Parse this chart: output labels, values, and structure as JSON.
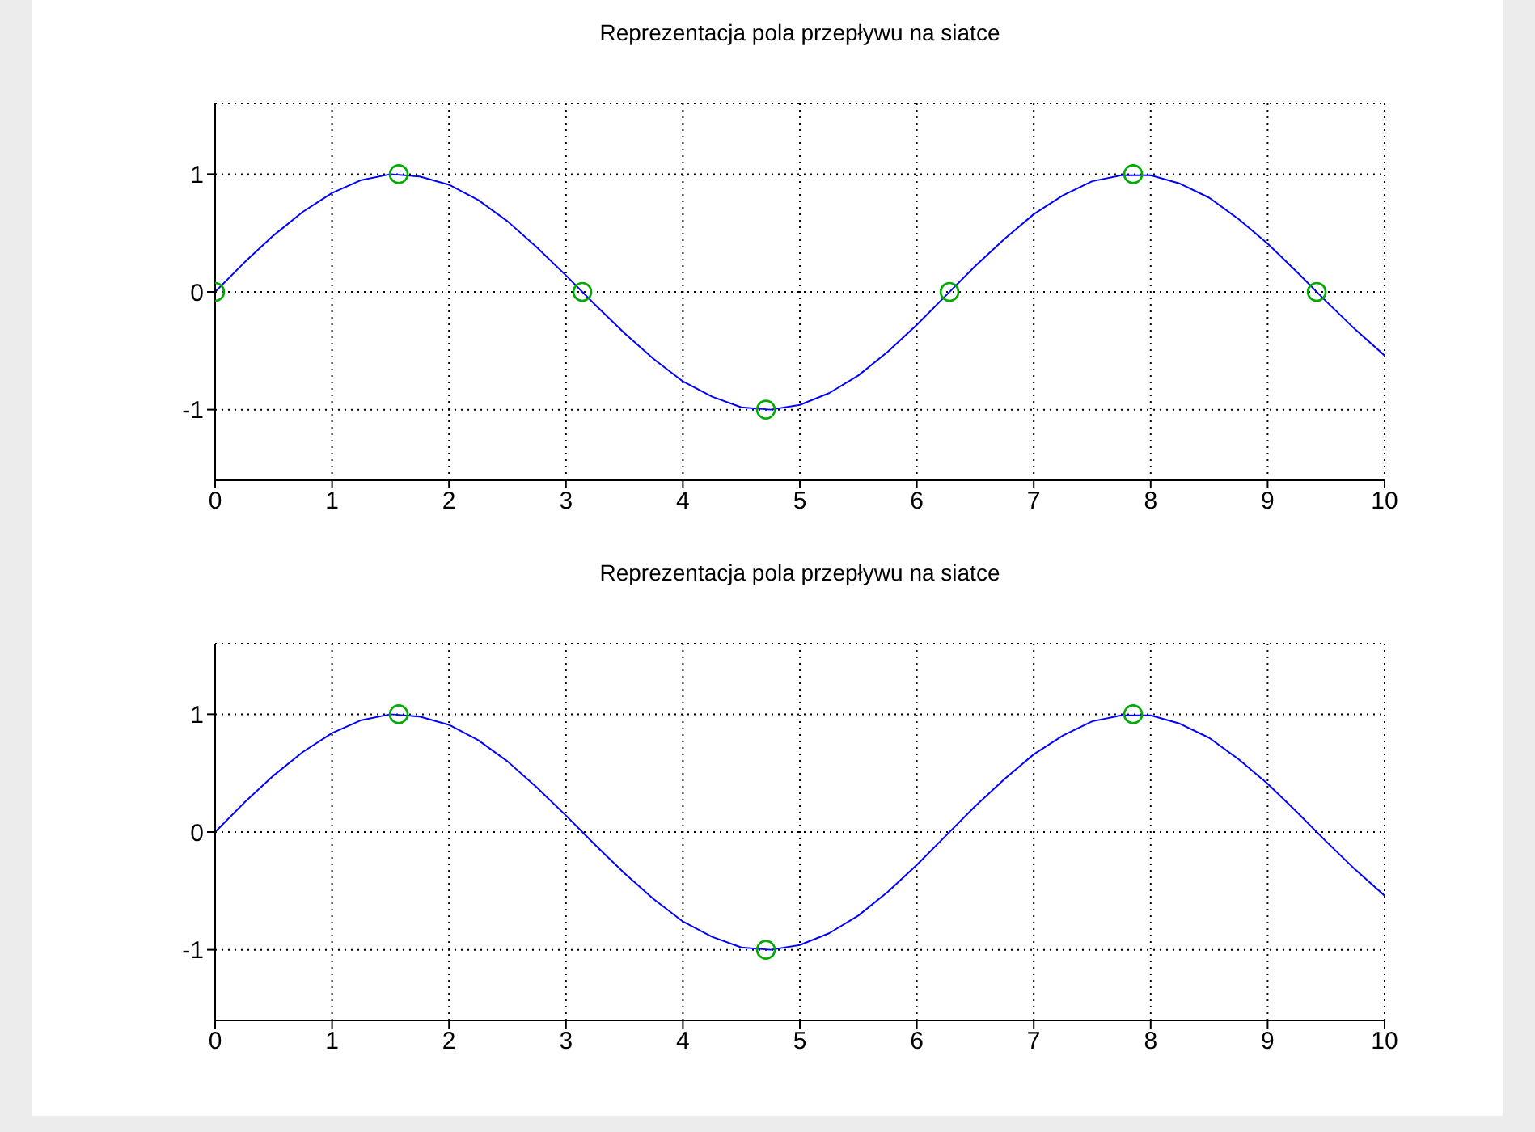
{
  "chart_data": [
    {
      "type": "line",
      "title": "Reprezentacja pola przepływu na siatce",
      "xlim": [
        0,
        10
      ],
      "xticks": [
        0,
        1,
        2,
        3,
        4,
        5,
        6,
        7,
        8,
        9,
        10
      ],
      "ylim": [
        -1.6,
        1.6
      ],
      "yticks": [
        -1,
        0,
        1
      ],
      "grid": true,
      "series": [
        {
          "color": "#0000ff",
          "line_style": "solid",
          "marker": "none",
          "x": [
            0,
            0.25,
            0.5,
            0.75,
            1,
            1.25,
            1.5,
            1.75,
            2,
            2.25,
            2.5,
            2.75,
            3,
            3.25,
            3.5,
            3.75,
            4,
            4.25,
            4.5,
            4.75,
            5,
            5.25,
            5.5,
            5.75,
            6,
            6.25,
            6.5,
            6.75,
            7,
            7.25,
            7.5,
            7.75,
            8,
            8.25,
            8.5,
            8.75,
            9,
            9.25,
            9.5,
            9.75,
            10
          ],
          "values": [
            0,
            0.25,
            0.48,
            0.68,
            0.84,
            0.95,
            1.0,
            0.98,
            0.91,
            0.78,
            0.6,
            0.38,
            0.14,
            -0.11,
            -0.35,
            -0.57,
            -0.76,
            -0.89,
            -0.98,
            -1.0,
            -0.96,
            -0.86,
            -0.71,
            -0.51,
            -0.28,
            -0.03,
            0.22,
            0.45,
            0.66,
            0.82,
            0.94,
            0.99,
            0.99,
            0.92,
            0.8,
            0.62,
            0.41,
            0.17,
            -0.08,
            -0.32,
            -0.54
          ]
        },
        {
          "type": "scatter",
          "color": "#00aa00",
          "marker": "circle",
          "x": [
            0,
            1.57,
            3.14,
            4.71,
            6.28,
            7.85,
            9.42
          ],
          "values": [
            0,
            1,
            0,
            -1,
            0,
            1,
            0
          ]
        }
      ]
    },
    {
      "type": "line",
      "title": "Reprezentacja pola przepływu na siatce",
      "xlim": [
        0,
        10
      ],
      "xticks": [
        0,
        1,
        2,
        3,
        4,
        5,
        6,
        7,
        8,
        9,
        10
      ],
      "ylim": [
        -1.6,
        1.6
      ],
      "yticks": [
        -1,
        0,
        1
      ],
      "grid": true,
      "series": [
        {
          "color": "#0000ff",
          "line_style": "solid",
          "marker": "none",
          "x": [
            0,
            0.25,
            0.5,
            0.75,
            1,
            1.25,
            1.5,
            1.75,
            2,
            2.25,
            2.5,
            2.75,
            3,
            3.25,
            3.5,
            3.75,
            4,
            4.25,
            4.5,
            4.75,
            5,
            5.25,
            5.5,
            5.75,
            6,
            6.25,
            6.5,
            6.75,
            7,
            7.25,
            7.5,
            7.75,
            8,
            8.25,
            8.5,
            8.75,
            9,
            9.25,
            9.5,
            9.75,
            10
          ],
          "values": [
            0,
            0.25,
            0.48,
            0.68,
            0.84,
            0.95,
            1.0,
            0.98,
            0.91,
            0.78,
            0.6,
            0.38,
            0.14,
            -0.11,
            -0.35,
            -0.57,
            -0.76,
            -0.89,
            -0.98,
            -1.0,
            -0.96,
            -0.86,
            -0.71,
            -0.51,
            -0.28,
            -0.03,
            0.22,
            0.45,
            0.66,
            0.82,
            0.94,
            0.99,
            0.99,
            0.92,
            0.8,
            0.62,
            0.41,
            0.17,
            -0.08,
            -0.32,
            -0.54
          ]
        },
        {
          "type": "scatter",
          "color": "#00aa00",
          "marker": "circle",
          "x": [
            1.57,
            4.71,
            7.85
          ],
          "values": [
            1,
            -1,
            1
          ]
        }
      ]
    }
  ]
}
